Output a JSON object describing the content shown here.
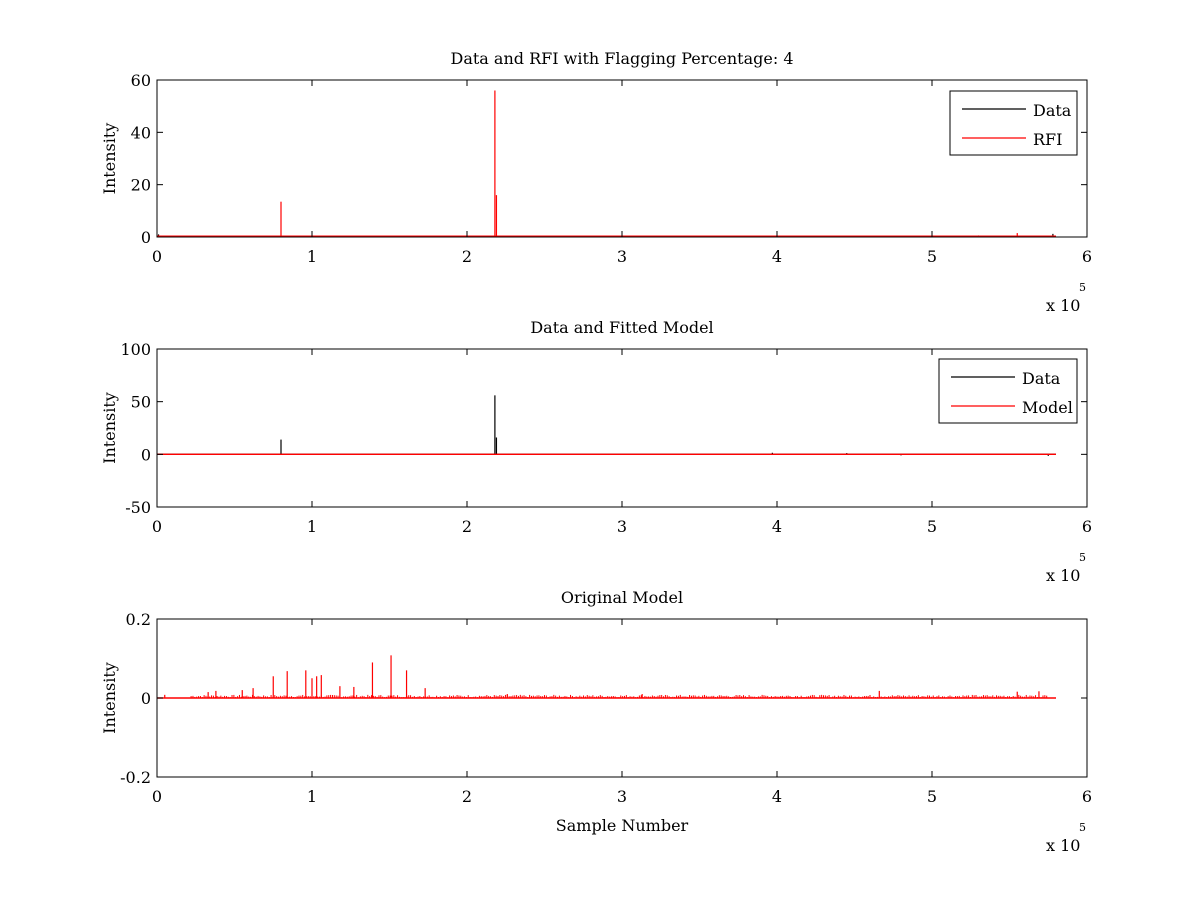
{
  "chart_data": [
    {
      "type": "line",
      "title": "Data and RFI with Flagging Percentage: 4",
      "xlabel": "",
      "ylabel": "Intensity",
      "xlim": [
        0,
        6
      ],
      "ylim": [
        0,
        60
      ],
      "x_multiplier_label": "x 10",
      "x_multiplier_exp": "5",
      "x_ticks": [
        "0",
        "1",
        "2",
        "3",
        "4",
        "5",
        "6"
      ],
      "y_ticks": [
        "0",
        "20",
        "40",
        "60"
      ],
      "legend": {
        "placement": "top-right",
        "entries": [
          "Data",
          "RFI"
        ]
      },
      "series": [
        {
          "name": "Data",
          "color": "#000000",
          "baseline": 0.3,
          "x_end": 5.8,
          "spikes": [
            [
              0.01,
              1.0
            ],
            [
              5.3,
              0.6
            ],
            [
              5.45,
              0.5
            ],
            [
              5.78,
              1.2
            ]
          ]
        },
        {
          "name": "RFI",
          "color": "#ff0000",
          "baseline": 0.3,
          "x_end": 5.8,
          "spikes": [
            [
              0.8,
              13.5
            ],
            [
              2.18,
              56
            ],
            [
              2.19,
              16
            ],
            [
              5.55,
              1.5
            ]
          ]
        }
      ]
    },
    {
      "type": "line",
      "title": "Data and Fitted Model",
      "xlabel": "",
      "ylabel": "Intensity",
      "xlim": [
        0,
        6
      ],
      "ylim": [
        -50,
        100
      ],
      "x_multiplier_label": "x 10",
      "x_multiplier_exp": "5",
      "x_ticks": [
        "0",
        "1",
        "2",
        "3",
        "4",
        "5",
        "6"
      ],
      "y_ticks": [
        "-50",
        "0",
        "50",
        "100"
      ],
      "legend": {
        "placement": "top-right",
        "entries": [
          "Data",
          "Model"
        ]
      },
      "series": [
        {
          "name": "Data",
          "color": "#000000",
          "baseline": 0,
          "x_end": 5.8,
          "spikes": [
            [
              0.8,
              14
            ],
            [
              2.18,
              56
            ],
            [
              2.19,
              16
            ],
            [
              3.97,
              1.5
            ],
            [
              4.45,
              1.2
            ],
            [
              4.8,
              -1
            ],
            [
              5.75,
              -1.5
            ]
          ]
        },
        {
          "name": "Model",
          "color": "#ff0000",
          "baseline": 0,
          "x_end": 5.8,
          "spikes": []
        }
      ]
    },
    {
      "type": "line",
      "title": "Original Model",
      "xlabel": "Sample Number",
      "ylabel": "Intensity",
      "xlim": [
        0,
        6
      ],
      "ylim": [
        -0.2,
        0.2
      ],
      "x_multiplier_label": "x 10",
      "x_multiplier_exp": "5",
      "x_ticks": [
        "0",
        "1",
        "2",
        "3",
        "4",
        "5",
        "6"
      ],
      "y_ticks": [
        "-0.2",
        "0",
        "0.2"
      ],
      "series": [
        {
          "name": "",
          "color": "#ff0000",
          "baseline": 0,
          "x_end": 5.8,
          "spikes": [
            [
              0.05,
              0.008
            ],
            [
              0.33,
              0.015
            ],
            [
              0.38,
              0.018
            ],
            [
              0.55,
              0.02
            ],
            [
              0.62,
              0.025
            ],
            [
              0.75,
              0.055
            ],
            [
              0.84,
              0.068
            ],
            [
              0.96,
              0.07
            ],
            [
              1.0,
              0.05
            ],
            [
              1.03,
              0.055
            ],
            [
              1.06,
              0.058
            ],
            [
              1.18,
              0.03
            ],
            [
              1.27,
              0.028
            ],
            [
              1.39,
              0.09
            ],
            [
              1.51,
              0.108
            ],
            [
              1.61,
              0.07
            ],
            [
              1.73,
              0.025
            ],
            [
              2.26,
              0.01
            ],
            [
              3.13,
              0.01
            ],
            [
              4.66,
              0.018
            ],
            [
              5.55,
              0.016
            ],
            [
              5.69,
              0.017
            ]
          ]
        }
      ]
    }
  ]
}
